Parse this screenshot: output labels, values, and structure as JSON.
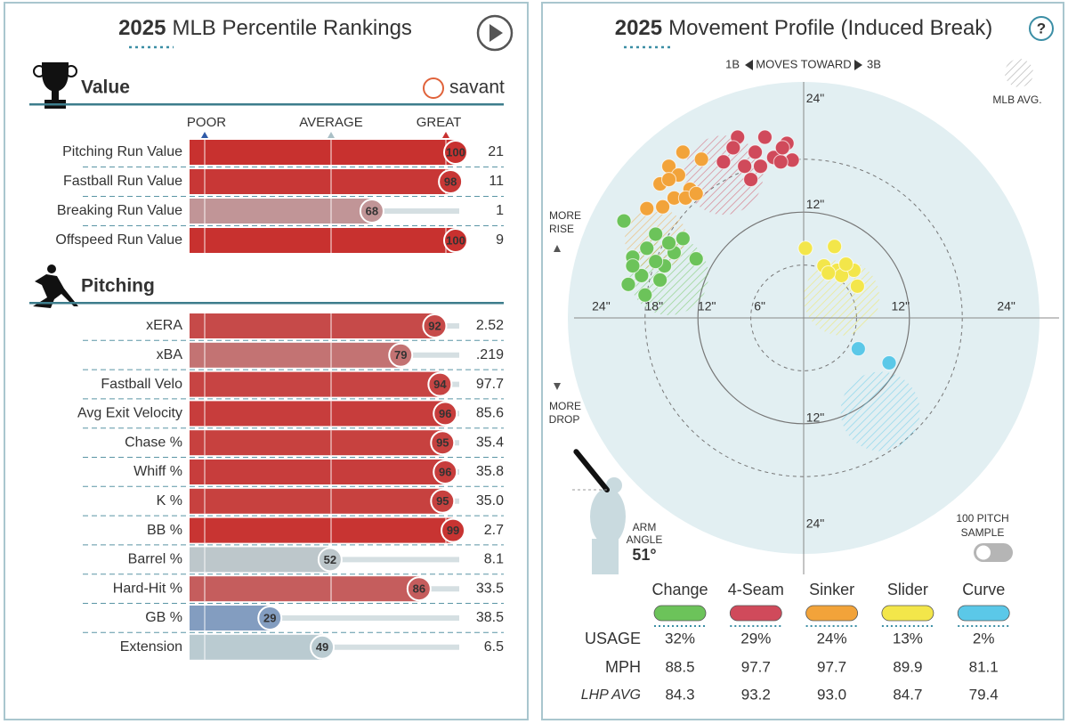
{
  "percentile": {
    "title_year": "2025",
    "title": "MLB Percentile Rankings",
    "scale": {
      "poor": "POOR",
      "average": "AVERAGE",
      "great": "GREAT"
    },
    "logo": "savant",
    "sections": [
      {
        "name": "Value",
        "rows": [
          {
            "label": "Pitching Run Value",
            "percentile": 100,
            "value": "21"
          },
          {
            "label": "Fastball Run Value",
            "percentile": 98,
            "value": "11"
          },
          {
            "label": "Breaking Run Value",
            "percentile": 68,
            "value": "1"
          },
          {
            "label": "Offspeed Run Value",
            "percentile": 100,
            "value": "9"
          }
        ]
      },
      {
        "name": "Pitching",
        "rows": [
          {
            "label": "xERA",
            "percentile": 92,
            "value": "2.52"
          },
          {
            "label": "xBA",
            "percentile": 79,
            "value": ".219"
          },
          {
            "label": "Fastball Velo",
            "percentile": 94,
            "value": "97.7"
          },
          {
            "label": "Avg Exit Velocity",
            "percentile": 96,
            "value": "85.6"
          },
          {
            "label": "Chase %",
            "percentile": 95,
            "value": "35.4"
          },
          {
            "label": "Whiff %",
            "percentile": 96,
            "value": "35.8"
          },
          {
            "label": "K %",
            "percentile": 95,
            "value": "35.0"
          },
          {
            "label": "BB %",
            "percentile": 99,
            "value": "2.7"
          },
          {
            "label": "Barrel %",
            "percentile": 52,
            "value": "8.1"
          },
          {
            "label": "Hard-Hit %",
            "percentile": 86,
            "value": "33.5"
          },
          {
            "label": "GB %",
            "percentile": 29,
            "value": "38.5"
          },
          {
            "label": "Extension",
            "percentile": 49,
            "value": "6.5"
          }
        ]
      }
    ]
  },
  "movement": {
    "title_year": "2025",
    "title": "Movement Profile (Induced Break)",
    "help": "?",
    "direction": {
      "left": "1B",
      "label": "MOVES TOWARD",
      "right": "3B"
    },
    "legend_avg": "MLB AVG.",
    "rise": [
      "MORE",
      "RISE"
    ],
    "drop": [
      "MORE",
      "DROP"
    ],
    "x_labels": [
      {
        "value": -24,
        "label": "24\""
      },
      {
        "value": -18,
        "label": "18\""
      },
      {
        "value": -12,
        "label": "12\""
      },
      {
        "value": -6,
        "label": "6\""
      },
      {
        "value": 12,
        "label": "12\""
      },
      {
        "value": 24,
        "label": "24\""
      }
    ],
    "y_labels": [
      {
        "value": 24,
        "label": "24\""
      },
      {
        "value": 12,
        "label": "12\""
      },
      {
        "value": -12,
        "label": "12\""
      },
      {
        "value": -24,
        "label": "24\""
      }
    ],
    "arm_angle": {
      "label": [
        "ARM",
        "ANGLE"
      ],
      "value": 51,
      "value_label": "51°"
    },
    "sample": [
      "100 PITCH",
      "SAMPLE"
    ],
    "row_labels": {
      "usage": "USAGE",
      "mph": "MPH",
      "lhp_avg": "LHP AVG"
    },
    "pitches": [
      {
        "name": "Change",
        "color": "#6cc35a",
        "usage": "32%",
        "mph": "88.5",
        "lhp_avg": "84.3",
        "x": [
          -20.4,
          -16.8,
          -17.8,
          -19.4,
          -15.8,
          -14.7,
          -13.7,
          -18.4,
          -19.9,
          -16.3,
          -12.2,
          -18.0,
          -19.4,
          -15.3,
          -16.8
        ],
        "y": [
          11.0,
          9.5,
          7.9,
          6.9,
          5.9,
          7.4,
          9.0,
          4.8,
          3.8,
          4.3,
          6.7,
          2.6,
          5.9,
          8.5,
          6.4
        ],
        "avg": {
          "x": -15.3,
          "y": 4.8,
          "r": 4.5
        }
      },
      {
        "name": "4-Seam",
        "color": "#d04a5b",
        "usage": "29%",
        "mph": "97.7",
        "lhp_avg": "93.2",
        "x": [
          -7.5,
          -4.4,
          -1.9,
          -1.3,
          -3.4,
          -5.5,
          -6.7,
          -6.0,
          -9.1,
          -8.0,
          -2.6,
          -4.9,
          -2.4
        ],
        "y": [
          20.5,
          20.5,
          19.8,
          17.9,
          18.2,
          18.8,
          17.2,
          15.7,
          17.7,
          19.3,
          17.7,
          17.2,
          19.3
        ],
        "avg": {
          "x": -9.1,
          "y": 16.2,
          "r": 4.5
        }
      },
      {
        "name": "Sinker",
        "color": "#f2a33a",
        "usage": "24%",
        "mph": "97.7",
        "lhp_avg": "93.0",
        "x": [
          -13.7,
          -11.6,
          -15.3,
          -16.3,
          -14.2,
          -12.9,
          -14.7,
          -16.0,
          -13.4,
          -17.8,
          -15.3,
          -12.2
        ],
        "y": [
          18.8,
          18.0,
          17.2,
          15.2,
          16.2,
          14.6,
          13.6,
          12.6,
          13.6,
          12.4,
          15.7,
          14.1
        ],
        "avg": {
          "x": -16.8,
          "y": 9.0,
          "r": 3.5
        }
      },
      {
        "name": "Slider",
        "color": "#f3e64a",
        "usage": "13%",
        "mph": "89.9",
        "lhp_avg": "84.7",
        "x": [
          0.2,
          3.5,
          2.3,
          3.8,
          5.7,
          6.1,
          4.3,
          2.8,
          4.8
        ],
        "y": [
          7.9,
          8.1,
          5.9,
          5.4,
          5.4,
          3.6,
          4.8,
          5.1,
          6.1
        ],
        "avg": {
          "x": 4.3,
          "y": 2.3,
          "r": 4.3
        }
      },
      {
        "name": "Curve",
        "color": "#5bc8e8",
        "usage": "2%",
        "mph": "81.1",
        "lhp_avg": "79.4",
        "x": [
          6.2,
          9.7
        ],
        "y": [
          -3.5,
          -5.1
        ],
        "avg": {
          "x": 8.7,
          "y": -10.6,
          "r": 4.5
        }
      }
    ]
  }
}
